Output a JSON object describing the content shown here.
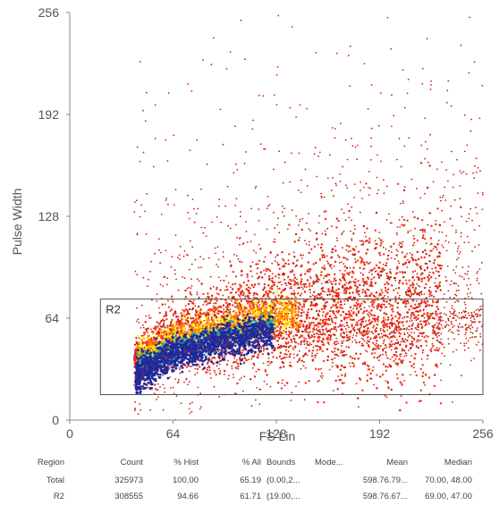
{
  "chart_data": {
    "type": "heatmap",
    "subtype": "density-scatter",
    "xlabel": "FS Lin",
    "ylabel": "Pulse Width",
    "xlim": [
      0,
      256
    ],
    "ylim": [
      0,
      256
    ],
    "x_ticks": [
      "0",
      "64",
      "128",
      "192",
      "256"
    ],
    "y_ticks": [
      "0",
      "64",
      "128",
      "192",
      "256"
    ],
    "grid": false,
    "density_colors": {
      "low": "#cc2211",
      "mid_low": "#ff3311",
      "mid": "#ff8800",
      "mid_high": "#ffee00",
      "high_teal": "#22aa99",
      "high": "#1a2a9e",
      "peak": "#4a2a8e"
    },
    "population": {
      "core_x_range": [
        40,
        130
      ],
      "core_y_range": [
        25,
        65
      ],
      "spread_x_range": [
        38,
        256
      ],
      "spread_y_range": [
        10,
        256
      ],
      "ridge_y_at_x": [
        [
          40,
          30
        ],
        [
          64,
          45
        ],
        [
          128,
          60
        ],
        [
          192,
          64
        ],
        [
          256,
          70
        ]
      ]
    },
    "regions": [
      {
        "name": "R2",
        "x_range": [
          19,
          256
        ],
        "y_range": [
          16,
          76
        ]
      }
    ]
  },
  "stats": {
    "header": [
      "Region",
      "Count",
      "% Hist",
      "% All",
      "Bounds",
      "Mode...",
      "Mean",
      "Median"
    ],
    "rows": [
      [
        "Total",
        "325973",
        "100.00",
        "65.19",
        "(0.00,2...",
        "",
        "598.76.79...",
        "70.00, 48.00"
      ],
      [
        "R2",
        "308555",
        "94.66",
        "61.71",
        "(19.00,...",
        "",
        "598.76.67...",
        "69.00, 47.00"
      ]
    ]
  }
}
